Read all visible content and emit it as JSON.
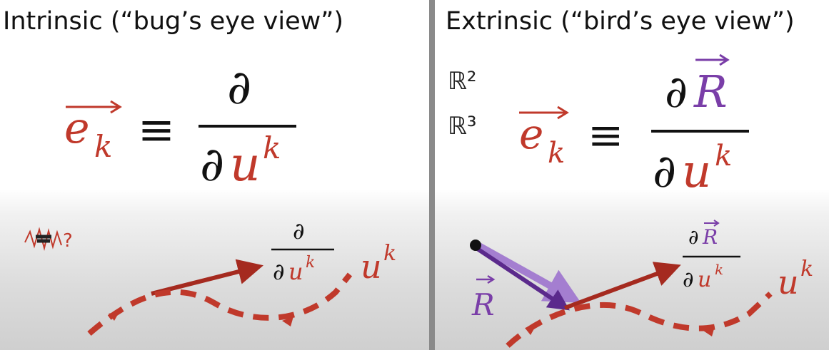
{
  "left_panel": {
    "title": "Intrinsic (“bug’s eye view”)",
    "definition": {
      "lhs": "e",
      "lhs_sub": "k",
      "equiv": "≡",
      "numerator": "∂",
      "denominator_d": "∂",
      "denominator_var": "u",
      "denominator_sup": "k"
    },
    "scribble": "?",
    "small_fraction": {
      "numerator": "∂",
      "denominator_d": "∂",
      "denominator_var": "u",
      "denominator_sup": "k"
    },
    "curve_label": {
      "var": "u",
      "sup": "k"
    }
  },
  "right_panel": {
    "title": "Extrinsic (“bird’s eye view”)",
    "spaces": [
      "ℝ²",
      "ℝ³"
    ],
    "definition": {
      "lhs": "e",
      "lhs_sub": "k",
      "equiv": "≡",
      "numerator_d": "∂",
      "numerator_var": "R",
      "denominator_d": "∂",
      "denominator_var": "u",
      "denominator_sup": "k"
    },
    "position_vector_label": "R",
    "small_fraction": {
      "numerator_d": "∂",
      "numerator_var": "R",
      "denominator_d": "∂",
      "denominator_var": "u",
      "denominator_sup": "k"
    },
    "curve_label": {
      "var": "u",
      "sup": "k"
    }
  },
  "colors": {
    "red": "#c0392b",
    "dark_red": "#a52a1f",
    "purple": "#7a3ea8",
    "light_purple": "#a47ed0",
    "black": "#111111"
  }
}
